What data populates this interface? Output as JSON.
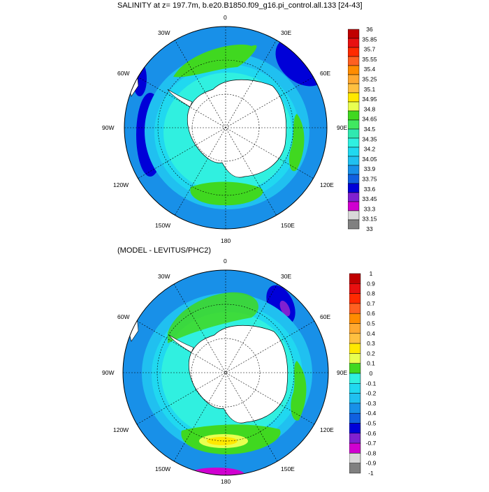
{
  "top_panel": {
    "title": "SALINITY at z= 197.7m, b.e20.B1850.f09_g16.pi_control.all.133 [24-43]",
    "lon_labels": {
      "top": "0",
      "upper_left": "30W",
      "upper_right": "30E",
      "left_upper": "60W",
      "right_upper": "60E",
      "left": "90W",
      "right": "90E",
      "left_lower": "120W",
      "right_lower": "120E",
      "lower_left": "150W",
      "lower_right": "150E",
      "bottom": "180"
    },
    "colorbar": {
      "labels": [
        "36",
        "35.85",
        "35.7",
        "35.55",
        "35.4",
        "35.25",
        "35.1",
        "34.95",
        "34.8",
        "34.65",
        "34.5",
        "34.35",
        "34.2",
        "34.05",
        "33.9",
        "33.75",
        "33.6",
        "33.45",
        "33.3",
        "33.15",
        "33"
      ],
      "colors": [
        "#c00000",
        "#e81010",
        "#ff2a00",
        "#ff6020",
        "#ff8c00",
        "#ffa830",
        "#ffc040",
        "#ffe800",
        "#e8ff50",
        "#40d820",
        "#40e860",
        "#30e8b0",
        "#30f0e0",
        "#20d8f0",
        "#20c0f0",
        "#1890e8",
        "#1060e0",
        "#0000d8",
        "#8020d0",
        "#d000d0",
        "#d8d8d8",
        "#808080"
      ]
    }
  },
  "bottom_panel": {
    "title": "(MODEL - LEVITUS/PHC2)",
    "lon_labels": {
      "top": "0",
      "upper_left": "30W",
      "upper_right": "30E",
      "left_upper": "60W",
      "right_upper": "60E",
      "left": "90W",
      "right": "90E",
      "left_lower": "120W",
      "right_lower": "120E",
      "lower_left": "150W",
      "lower_right": "150E",
      "bottom": "180"
    },
    "colorbar": {
      "labels": [
        "1",
        "0.9",
        "0.8",
        "0.7",
        "0.6",
        "0.5",
        "0.4",
        "0.3",
        "0.2",
        "0.1",
        "0",
        "-0.1",
        "-0.2",
        "-0.3",
        "-0.4",
        "-0.5",
        "-0.6",
        "-0.7",
        "-0.8",
        "-0.9",
        "-1"
      ],
      "colors": [
        "#c00000",
        "#e81010",
        "#ff2a00",
        "#ff6020",
        "#ff8c00",
        "#ffa830",
        "#ffc040",
        "#ffe800",
        "#e8ff50",
        "#40d820",
        "#30f0e0",
        "#20d8f0",
        "#20c0f0",
        "#1890e8",
        "#1060e0",
        "#0000d8",
        "#8020d0",
        "#d000d0",
        "#d8d8d8",
        "#808080"
      ]
    }
  }
}
